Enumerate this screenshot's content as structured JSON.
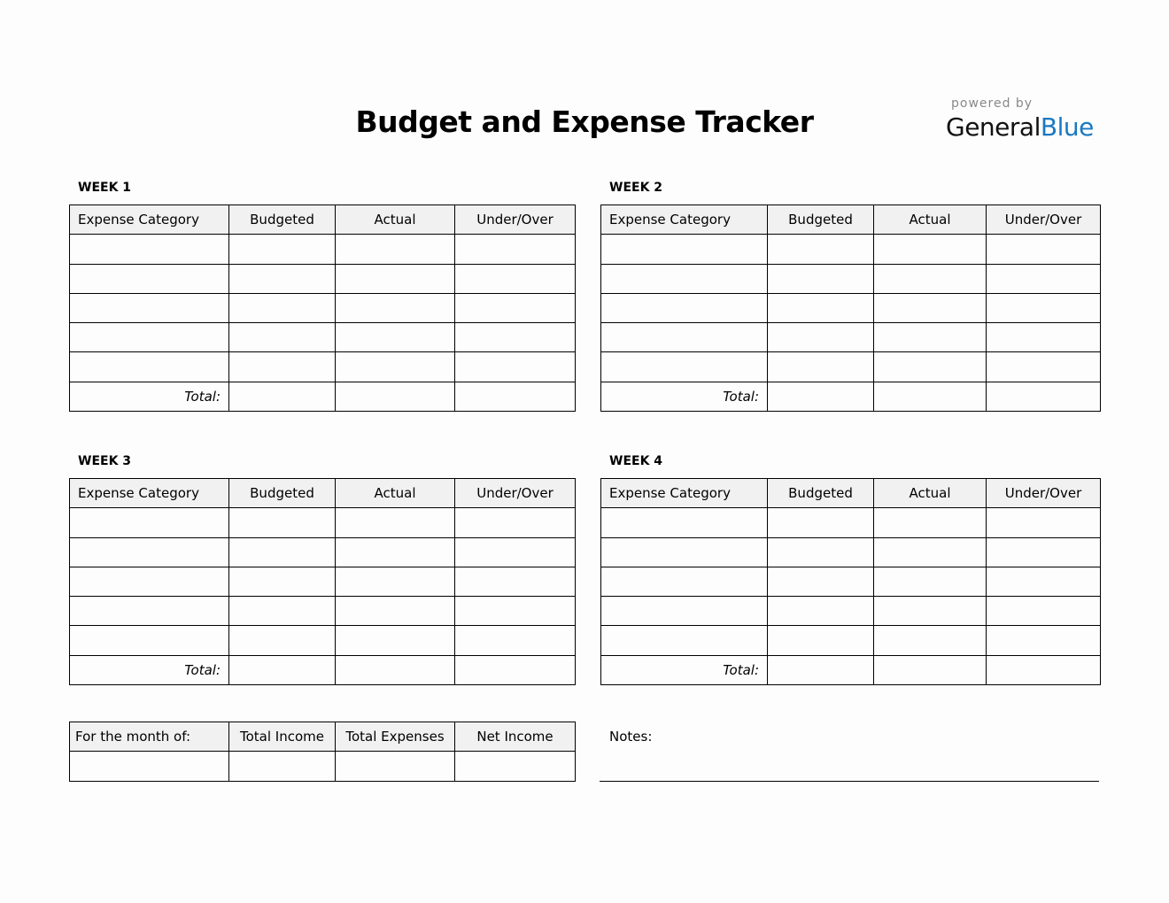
{
  "title": "Budget and Expense Tracker",
  "logo": {
    "powered_by": "powered by",
    "brand_general": "General",
    "brand_blue": "Blue",
    "blue_color": "#1a78c2"
  },
  "columns": [
    "Expense Category",
    "Budgeted",
    "Actual",
    "Under/Over"
  ],
  "total_label": "Total:",
  "weeks": [
    {
      "label": "WEEK 1",
      "rows": [
        [
          "",
          "",
          "",
          ""
        ],
        [
          "",
          "",
          "",
          ""
        ],
        [
          "",
          "",
          "",
          ""
        ],
        [
          "",
          "",
          "",
          ""
        ],
        [
          "",
          "",
          "",
          ""
        ]
      ],
      "total": [
        "",
        "",
        ""
      ]
    },
    {
      "label": "WEEK 2",
      "rows": [
        [
          "",
          "",
          "",
          ""
        ],
        [
          "",
          "",
          "",
          ""
        ],
        [
          "",
          "",
          "",
          ""
        ],
        [
          "",
          "",
          "",
          ""
        ],
        [
          "",
          "",
          "",
          ""
        ]
      ],
      "total": [
        "",
        "",
        ""
      ]
    },
    {
      "label": "WEEK 3",
      "rows": [
        [
          "",
          "",
          "",
          ""
        ],
        [
          "",
          "",
          "",
          ""
        ],
        [
          "",
          "",
          "",
          ""
        ],
        [
          "",
          "",
          "",
          ""
        ],
        [
          "",
          "",
          "",
          ""
        ]
      ],
      "total": [
        "",
        "",
        ""
      ]
    },
    {
      "label": "WEEK 4",
      "rows": [
        [
          "",
          "",
          "",
          ""
        ],
        [
          "",
          "",
          "",
          ""
        ],
        [
          "",
          "",
          "",
          ""
        ],
        [
          "",
          "",
          "",
          ""
        ],
        [
          "",
          "",
          "",
          ""
        ]
      ],
      "total": [
        "",
        "",
        ""
      ]
    }
  ],
  "summary": {
    "columns": [
      "For the month of:",
      "Total Income",
      "Total Expenses",
      "Net Income"
    ],
    "values": [
      "",
      "",
      "",
      ""
    ]
  },
  "notes": {
    "label": "Notes:",
    "value": ""
  }
}
